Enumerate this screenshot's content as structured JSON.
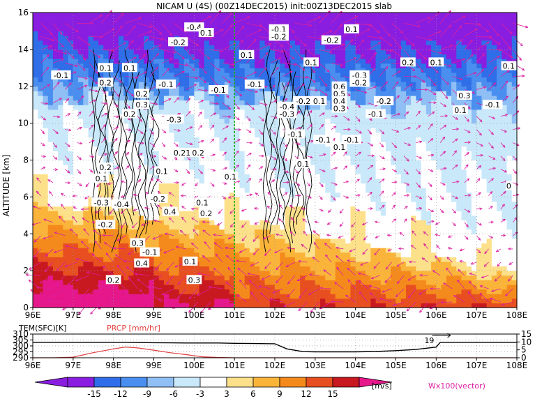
{
  "title": "NICAM U (4S) (00Z14DEC2015) init:00Z13DEC2015 slab",
  "colors": {
    "c_neg15": "#8a1ee0",
    "c_neg12": "#2f6ee8",
    "c_neg9": "#4a8ff0",
    "c_neg6": "#8fbff5",
    "c_neg3": "#c9e8fa",
    "c_0": "#ffffff",
    "c_3": "#fde08a",
    "c_6": "#fbb43a",
    "c_9": "#f58a1c",
    "c_12": "#e84f20",
    "c_15": "#c81820",
    "c_over": "#e6178a",
    "vector": "#dd1ea0",
    "contour": "#000000",
    "grid": "#9a9a9a",
    "center_line": "#18b018",
    "prcp": "#e03c3c",
    "temp": "#000000"
  },
  "chart_data": [
    {
      "type": "heatmap",
      "title": "NICAM U (4S) (00Z14DEC2015) init:00Z13DEC2015 slab",
      "xlabel": "",
      "ylabel": "ALTITUDE [km]",
      "xlim": [
        96,
        108
      ],
      "ylim": [
        0,
        16
      ],
      "x_ticks": [
        "96E",
        "97E",
        "98E",
        "99E",
        "100E",
        "101E",
        "102E",
        "103E",
        "104E",
        "105E",
        "106E",
        "107E",
        "108E"
      ],
      "y_ticks": [
        "0",
        "2",
        "4",
        "6",
        "8",
        "10",
        "12",
        "14",
        "16"
      ],
      "grid": true,
      "reference_line_lon": 101,
      "colorbar_levels": [
        "-15",
        "-12",
        "-9",
        "-6",
        "-3",
        "3",
        "6",
        "9",
        "12",
        "15"
      ],
      "colorbar_unit": "[m/s]",
      "vector_label": "Wx100(vector)",
      "contour_labels": [
        {
          "lon": 100.0,
          "alt": 15.2,
          "text": "-0.4"
        },
        {
          "lon": 100.3,
          "alt": 14.9,
          "text": "0.1"
        },
        {
          "lon": 99.6,
          "alt": 14.4,
          "text": "-0.2"
        },
        {
          "lon": 102.1,
          "alt": 15.1,
          "text": "-0.1"
        },
        {
          "lon": 102.1,
          "alt": 14.7,
          "text": "-0.2"
        },
        {
          "lon": 103.9,
          "alt": 15.1,
          "text": "0.1"
        },
        {
          "lon": 103.4,
          "alt": 14.5,
          "text": "-0.2"
        },
        {
          "lon": 101.3,
          "alt": 13.7,
          "text": "0.1"
        },
        {
          "lon": 102.9,
          "alt": 13.3,
          "text": "0.1"
        },
        {
          "lon": 97.8,
          "alt": 13.0,
          "text": "0.1"
        },
        {
          "lon": 98.4,
          "alt": 13.0,
          "text": "0.1"
        },
        {
          "lon": 96.7,
          "alt": 12.6,
          "text": "-0.1"
        },
        {
          "lon": 97.8,
          "alt": 12.2,
          "text": "0.2"
        },
        {
          "lon": 99.3,
          "alt": 12.1,
          "text": "-0.1"
        },
        {
          "lon": 100.6,
          "alt": 11.8,
          "text": "-0.1"
        },
        {
          "lon": 101.5,
          "alt": 12.1,
          "text": "-0.1"
        },
        {
          "lon": 104.1,
          "alt": 12.6,
          "text": "-0.3"
        },
        {
          "lon": 104.1,
          "alt": 12.2,
          "text": "-0.2"
        },
        {
          "lon": 105.3,
          "alt": 13.3,
          "text": "0.2"
        },
        {
          "lon": 106.0,
          "alt": 13.3,
          "text": "0.1"
        },
        {
          "lon": 107.8,
          "alt": 13.1,
          "text": "0.1"
        },
        {
          "lon": 103.6,
          "alt": 12.0,
          "text": "0.6"
        },
        {
          "lon": 103.6,
          "alt": 11.6,
          "text": "0.5"
        },
        {
          "lon": 103.6,
          "alt": 11.2,
          "text": "0.4"
        },
        {
          "lon": 103.6,
          "alt": 10.8,
          "text": "0.3"
        },
        {
          "lon": 102.7,
          "alt": 11.2,
          "text": "-0.2"
        },
        {
          "lon": 103.1,
          "alt": 11.2,
          "text": "0.1"
        },
        {
          "lon": 102.3,
          "alt": 10.9,
          "text": "-0.4"
        },
        {
          "lon": 102.3,
          "alt": 10.5,
          "text": "-0.3"
        },
        {
          "lon": 104.7,
          "alt": 11.2,
          "text": "-0.2"
        },
        {
          "lon": 104.5,
          "alt": 10.5,
          "text": "-0.1"
        },
        {
          "lon": 106.7,
          "alt": 11.5,
          "text": "0.3"
        },
        {
          "lon": 106.6,
          "alt": 10.7,
          "text": "0.1"
        },
        {
          "lon": 107.4,
          "alt": 11.0,
          "text": "-0.1"
        },
        {
          "lon": 98.7,
          "alt": 11.6,
          "text": "0.2"
        },
        {
          "lon": 98.7,
          "alt": 11.0,
          "text": "0.3"
        },
        {
          "lon": 98.4,
          "alt": 10.5,
          "text": "0.2"
        },
        {
          "lon": 99.5,
          "alt": 10.2,
          "text": "-0.3"
        },
        {
          "lon": 102.5,
          "alt": 9.4,
          "text": "-0.1"
        },
        {
          "lon": 103.2,
          "alt": 9.1,
          "text": "-0.1"
        },
        {
          "lon": 103.9,
          "alt": 9.1,
          "text": "-0.1"
        },
        {
          "lon": 103.6,
          "alt": 8.7,
          "text": "0.1"
        },
        {
          "lon": 99.7,
          "alt": 8.4,
          "text": "0.21"
        },
        {
          "lon": 100.1,
          "alt": 8.4,
          "text": "0.2"
        },
        {
          "lon": 97.8,
          "alt": 7.6,
          "text": "0.2"
        },
        {
          "lon": 99.2,
          "alt": 7.4,
          "text": "0.1"
        },
        {
          "lon": 97.7,
          "alt": 7.0,
          "text": "0.1"
        },
        {
          "lon": 100.9,
          "alt": 7.1,
          "text": "0.1"
        },
        {
          "lon": 102.7,
          "alt": 7.8,
          "text": "0.1"
        },
        {
          "lon": 107.8,
          "alt": 6.6,
          "text": "0"
        },
        {
          "lon": 97.7,
          "alt": 5.7,
          "text": "-0.3"
        },
        {
          "lon": 98.2,
          "alt": 5.6,
          "text": "-0.4"
        },
        {
          "lon": 99.1,
          "alt": 5.9,
          "text": "-0.2"
        },
        {
          "lon": 100.2,
          "alt": 5.7,
          "text": "0.1"
        },
        {
          "lon": 99.4,
          "alt": 5.2,
          "text": "0.4"
        },
        {
          "lon": 100.3,
          "alt": 5.1,
          "text": "0.2"
        },
        {
          "lon": 97.8,
          "alt": 4.5,
          "text": "-0.2"
        },
        {
          "lon": 98.6,
          "alt": 3.5,
          "text": "0.3"
        },
        {
          "lon": 98.9,
          "alt": 3.0,
          "text": "-0.1"
        },
        {
          "lon": 98.7,
          "alt": 2.4,
          "text": "0.4"
        },
        {
          "lon": 99.9,
          "alt": 2.5,
          "text": "0.1"
        },
        {
          "lon": 98.0,
          "alt": 1.5,
          "text": "0.2"
        },
        {
          "lon": 100.0,
          "alt": 1.5,
          "text": "0.3"
        }
      ]
    },
    {
      "type": "line",
      "title": "",
      "left_label": "TEM(SFC)[K]",
      "right_label": "PRCP [mm/hr]",
      "x": [
        96,
        96.5,
        97,
        97.5,
        98,
        98.3,
        98.6,
        99,
        99.4,
        99.8,
        100.2,
        100.6,
        101,
        101.5,
        102,
        102.3,
        102.7,
        103,
        103.5,
        104,
        104.5,
        105,
        105.5,
        106,
        106.1,
        106.5,
        107,
        107.5,
        108
      ],
      "series": [
        {
          "name": "TEM(SFC)[K]",
          "axis": "left",
          "values": [
            303,
            303,
            303,
            303,
            303,
            303,
            302.8,
            302.7,
            302.6,
            302.5,
            302.5,
            302.5,
            302.2,
            302,
            301.8,
            297.5,
            295.2,
            295,
            295,
            295,
            295.3,
            296,
            297,
            299,
            303,
            303,
            303,
            303,
            303
          ]
        },
        {
          "name": "PRCP [mm/hr]",
          "axis": "right",
          "values": [
            0,
            0,
            0.4,
            3.2,
            5.6,
            6.8,
            6.2,
            4.8,
            3.2,
            2.0,
            0.6,
            0.2,
            0,
            0,
            0,
            0,
            0,
            0,
            0,
            0,
            0,
            0,
            0,
            0,
            0,
            0,
            0,
            0,
            0
          ]
        }
      ],
      "left_ylim": [
        290,
        310
      ],
      "right_ylim": [
        0,
        15
      ],
      "left_ticks": [
        "290",
        "295",
        "300",
        "305",
        "310"
      ],
      "right_ticks": [
        "0",
        "5",
        "10",
        "15"
      ],
      "annotation": "19"
    }
  ]
}
